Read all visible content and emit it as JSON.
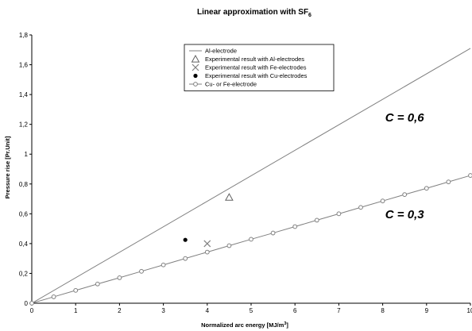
{
  "chart_data": {
    "type": "line",
    "title_main": "Linear approximation with SF",
    "title_sub": "6",
    "xlabel_main": "Normalized arc energy [MJ/m",
    "xlabel_sup": "3",
    "xlabel_end": "]",
    "ylabel": "Pressure rise [Pr.Unit]",
    "xlim": [
      0,
      10
    ],
    "ylim": [
      0,
      1.8
    ],
    "x_ticks": [
      0,
      1,
      2,
      3,
      4,
      5,
      6,
      7,
      8,
      9,
      10
    ],
    "x_tick_labels": [
      "0",
      "1",
      "2",
      "3",
      "4",
      "5",
      "6",
      "7",
      "8",
      "9",
      "10"
    ],
    "y_ticks": [
      0,
      0.2,
      0.4,
      0.6,
      0.8,
      1.0,
      1.2,
      1.4,
      1.6,
      1.8
    ],
    "y_tick_labels": [
      "0",
      "0,2",
      "0,4",
      "0,6",
      "0,8",
      "1",
      "1,2",
      "1,4",
      "1,6",
      "1,8"
    ],
    "series": [
      {
        "name": "Al-electrode",
        "kind": "line",
        "color": "#808080",
        "x": [
          0,
          10
        ],
        "y": [
          0,
          1.71
        ]
      },
      {
        "name": "Experimental result with Al-electrodes",
        "kind": "scatter",
        "marker": "triangle",
        "color": "#606060",
        "x": [
          4.5
        ],
        "y": [
          0.71
        ]
      },
      {
        "name": "Experimental result with Fe-electrodes",
        "kind": "scatter",
        "marker": "cross",
        "color": "#808080",
        "x": [
          4.0
        ],
        "y": [
          0.4
        ]
      },
      {
        "name": "Experimental result with Cu-electrodes",
        "kind": "scatter",
        "marker": "dot",
        "color": "#000000",
        "x": [
          3.5
        ],
        "y": [
          0.425
        ]
      },
      {
        "name": "Cu- or Fe-electrode",
        "kind": "line-markers",
        "marker": "circle",
        "color": "#808080",
        "x": [
          0,
          0.5,
          1,
          1.5,
          2,
          2.5,
          3,
          3.5,
          4,
          4.5,
          5,
          5.5,
          6,
          6.5,
          7,
          7.5,
          8,
          8.5,
          9,
          9.5,
          10
        ],
        "y": [
          0,
          0.043,
          0.086,
          0.129,
          0.171,
          0.214,
          0.257,
          0.3,
          0.343,
          0.386,
          0.429,
          0.471,
          0.514,
          0.557,
          0.6,
          0.643,
          0.686,
          0.729,
          0.771,
          0.814,
          0.857
        ]
      }
    ],
    "annotations": [
      {
        "text": "C = 0,6",
        "x": 8.5,
        "y": 1.22
      },
      {
        "text": "C = 0,3",
        "x": 8.5,
        "y": 0.57
      }
    ],
    "legend_position": "top-center",
    "grid": false
  }
}
